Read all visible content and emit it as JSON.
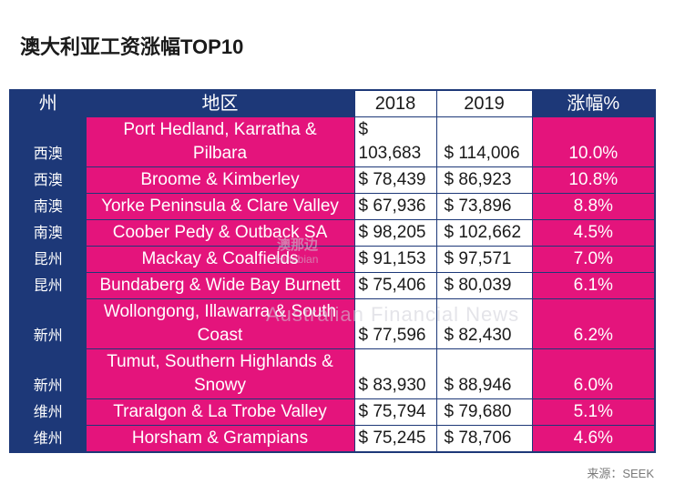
{
  "colors": {
    "navy": "#1d3878",
    "pink": "#e4147c",
    "white": "#ffffff",
    "title_text": "#1a1a1a",
    "source_text": "#7a7a7a"
  },
  "watermark": {
    "cn": "澳那边",
    "en": "Hinabian",
    "sub": "Australian Financial News"
  },
  "source": "来源：SEEK",
  "chart_data": {
    "type": "table",
    "title": "澳大利亚工资涨幅TOP10",
    "columns": [
      "州",
      "地区",
      "2018",
      "2019",
      "涨幅%"
    ],
    "rows": [
      {
        "state": "西澳",
        "region": "Port Hedland, Karratha & Pilbara",
        "y2018": "$ 103,683",
        "y2019": "$ 114,006",
        "change": "10.0%",
        "lines": 2
      },
      {
        "state": "西澳",
        "region": "Broome & Kimberley",
        "y2018": "$ 78,439",
        "y2019": "$ 86,923",
        "change": "10.8%",
        "lines": 1
      },
      {
        "state": "南澳",
        "region": "Yorke Peninsula & Clare Valley",
        "y2018": "$ 67,936",
        "y2019": "$ 73,896",
        "change": "8.8%",
        "lines": 1
      },
      {
        "state": "南澳",
        "region": "Coober Pedy & Outback SA",
        "y2018": "$ 98,205",
        "y2019": "$ 102,662",
        "change": "4.5%",
        "lines": 1
      },
      {
        "state": "昆州",
        "region": "Mackay & Coalfields",
        "y2018": "$ 91,153",
        "y2019": "$ 97,571",
        "change": "7.0%",
        "lines": 1
      },
      {
        "state": "昆州",
        "region": "Bundaberg & Wide Bay Burnett",
        "y2018": "$ 75,406",
        "y2019": "$ 80,039",
        "change": "6.1%",
        "lines": 1
      },
      {
        "state": "新州",
        "region": "Wollongong, Illawarra & South Coast",
        "y2018": "$ 77,596",
        "y2019": "$ 82,430",
        "change": "6.2%",
        "lines": 2
      },
      {
        "state": "新州",
        "region": "Tumut, Southern Highlands & Snowy",
        "y2018": "$ 83,930",
        "y2019": "$ 88,946",
        "change": "6.0%",
        "lines": 2
      },
      {
        "state": "维州",
        "region": "Traralgon & La Trobe Valley",
        "y2018": "$ 75,794",
        "y2019": "$ 79,680",
        "change": "5.1%",
        "lines": 1
      },
      {
        "state": "维州",
        "region": "Horsham & Grampians",
        "y2018": "$ 75,245",
        "y2019": "$ 78,706",
        "change": "4.6%",
        "lines": 1
      }
    ]
  }
}
